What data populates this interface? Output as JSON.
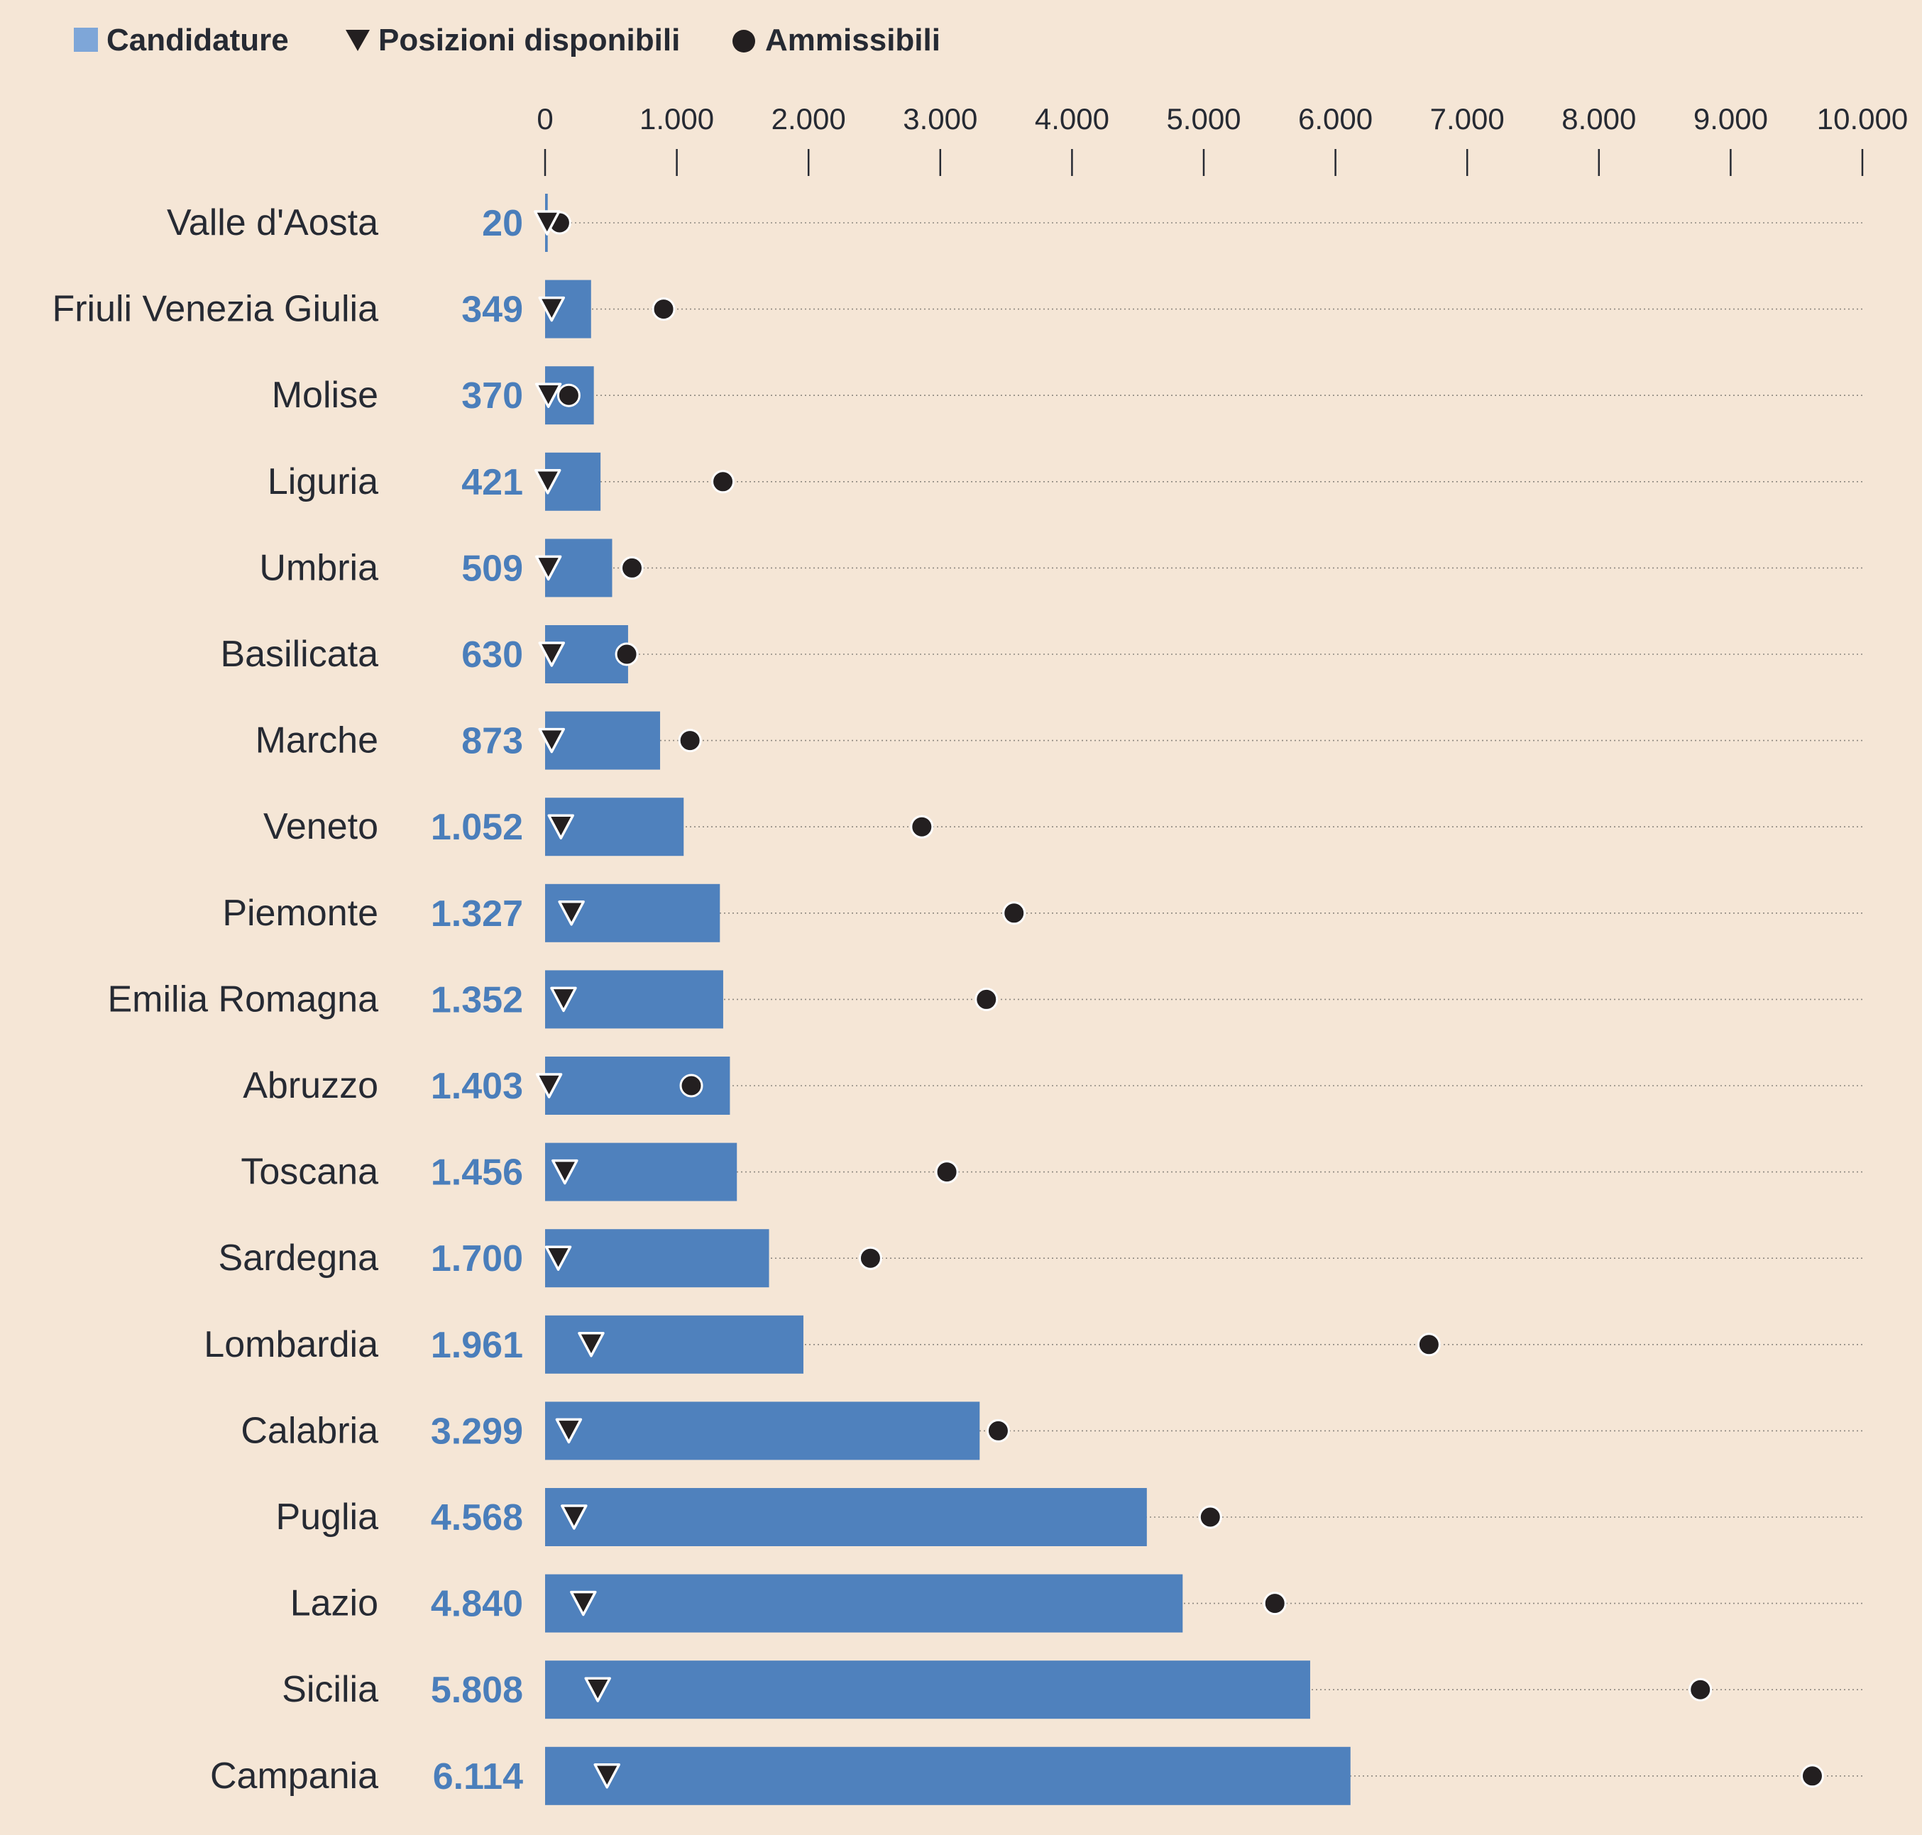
{
  "legend": {
    "candidature": "Candidature",
    "posizioni": "Posizioni disponibili",
    "ammissibili": "Ammissibili"
  },
  "colors": {
    "background": "#f5e6d6",
    "bar": "#4f81bd",
    "legend_square": "#7ea6d8",
    "value_text": "#4a7ebb",
    "marker": "#231f20",
    "text": "#262a33"
  },
  "chart_data": {
    "type": "bar",
    "orientation": "horizontal",
    "xlim": [
      0,
      10000
    ],
    "xticks": [
      0,
      1000,
      2000,
      3000,
      4000,
      5000,
      6000,
      7000,
      8000,
      9000,
      10000
    ],
    "xtick_labels": [
      "0",
      "1.000",
      "2.000",
      "3.000",
      "4.000",
      "5.000",
      "6.000",
      "7.000",
      "8.000",
      "9.000",
      "10.000"
    ],
    "legend_position": "top-left",
    "categories": [
      "Valle d'Aosta",
      "Friuli Venezia Giulia",
      "Molise",
      "Liguria",
      "Umbria",
      "Basilicata",
      "Marche",
      "Veneto",
      "Piemonte",
      "Emilia Romagna",
      "Abruzzo",
      "Toscana",
      "Sardegna",
      "Lombardia",
      "Calabria",
      "Puglia",
      "Lazio",
      "Sicilia",
      "Campania"
    ],
    "value_labels": [
      "20",
      "349",
      "370",
      "421",
      "509",
      "630",
      "873",
      "1.052",
      "1.327",
      "1.352",
      "1.403",
      "1.456",
      "1.700",
      "1.961",
      "3.299",
      "4.568",
      "4.840",
      "5.808",
      "6.114"
    ],
    "series": [
      {
        "name": "Candidature",
        "marker": "bar",
        "values": [
          20,
          349,
          370,
          421,
          509,
          630,
          873,
          1052,
          1327,
          1352,
          1403,
          1456,
          1700,
          1961,
          3299,
          4568,
          4840,
          5808,
          6114
        ]
      },
      {
        "name": "Posizioni disponibili",
        "marker": "triangle-down",
        "values": [
          15,
          50,
          25,
          20,
          25,
          50,
          50,
          120,
          200,
          140,
          30,
          150,
          100,
          350,
          180,
          220,
          290,
          400,
          470
        ]
      },
      {
        "name": "Ammissibili",
        "marker": "circle",
        "values": [
          110,
          900,
          180,
          1350,
          660,
          620,
          1100,
          2860,
          3560,
          3350,
          1110,
          3050,
          2470,
          6710,
          3440,
          5050,
          5540,
          8770,
          9620
        ]
      }
    ]
  }
}
